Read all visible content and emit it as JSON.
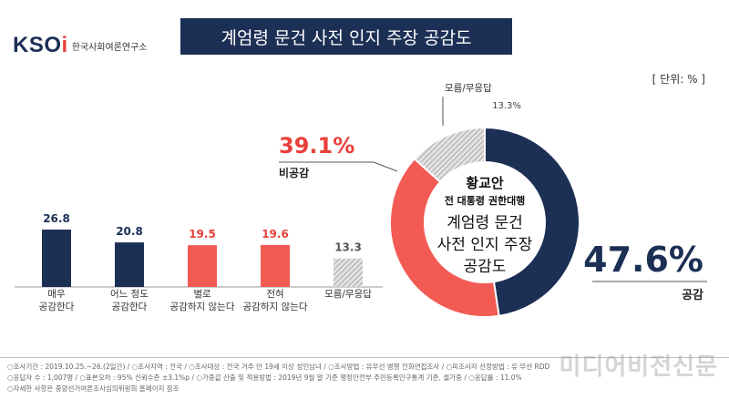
{
  "logo": {
    "mark_prefix": "KSO",
    "mark_o": "i",
    "text": "한국사회여론연구소"
  },
  "title": "계엄령 문건 사전 인지 주장 공감도",
  "unit": "[ 단위: % ]",
  "chart_data": [
    {
      "type": "bar",
      "categories": [
        "매우\n공감한다",
        "어느 정도\n공감한다",
        "별로\n공감하지 않는다",
        "전혀\n공감하지 않는다",
        "모름/무응답"
      ],
      "values": [
        26.8,
        20.8,
        19.5,
        19.6,
        13.3
      ],
      "value_labels": [
        "26.8",
        "20.8",
        "19.5",
        "19.6",
        "13.3"
      ],
      "colors": [
        "#1c2f55",
        "#1c2f55",
        "#f25a54",
        "#f25a54",
        "hatch"
      ],
      "label_colors": [
        "#1c2f55",
        "#1c2f55",
        "#e8403c",
        "#e8403c",
        "#555555"
      ]
    },
    {
      "type": "pie",
      "style": "donut",
      "slices": [
        {
          "label": "공감",
          "value": 47.6,
          "value_label": "47.6%",
          "color": "#1c2f55"
        },
        {
          "label": "비공감",
          "value": 39.1,
          "value_label": "39.1%",
          "color": "#f25a54"
        },
        {
          "label": "모름/무응답",
          "value": 13.3,
          "value_label": "13.3%",
          "color": "hatch"
        }
      ],
      "center_text": [
        "황교안",
        "전 대통령 권한대행",
        "계엄령 문건",
        "사전 인지 주장",
        "공감도"
      ]
    }
  ],
  "footer": [
    "○조사기간 : 2019.10.25.~26.(2일간)   /  ○조사지역 : 전국  /  ○조사대상 : 전국 거주 만 19세 이상 성인남녀  /  ○조사방법 : 유무선 병행 전화면접조사  /  ○피조사자 선정방법 : 유·무선 RDD",
    "○응답자 수 : 1,007명  /  ○표본오차 : 95% 신뢰수준 ±3.1%p  /  ○가중값 산출 및 적용방법 : 2019년 9월 말 기준 행정안전부 주민등록인구통계 기준, 셀가중  /  ○응답률 : 11.0%",
    "○자세한 사항은 중앙선거여론조사심의위원회 홈페이지 참조"
  ],
  "watermark": "미디어비전신문"
}
